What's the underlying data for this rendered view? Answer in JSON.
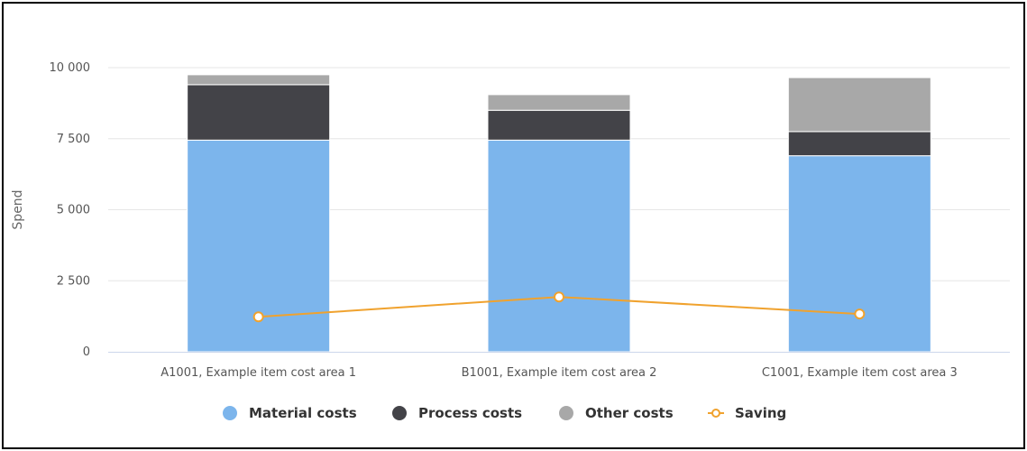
{
  "chart_data": {
    "type": "bar",
    "stacked": true,
    "categories": [
      "A1001, Example item cost area 1",
      "B1001, Example item cost area 2",
      "C1001, Example item cost area 3"
    ],
    "series": [
      {
        "name": "Material costs",
        "kind": "bar",
        "color": "#7cb5ec",
        "values": [
          7450,
          7450,
          6900
        ]
      },
      {
        "name": "Process costs",
        "kind": "bar",
        "color": "#434348",
        "values": [
          1950,
          1050,
          850
        ]
      },
      {
        "name": "Other costs",
        "kind": "bar",
        "color": "#a8a8a8",
        "values": [
          350,
          550,
          1900
        ]
      },
      {
        "name": "Saving",
        "kind": "line",
        "color": "#f0a22e",
        "values": [
          1230,
          1930,
          1330
        ]
      }
    ],
    "title": "",
    "xlabel": "",
    "ylabel": "Spend",
    "ylim": [
      0,
      10000
    ],
    "yticks": [
      0,
      2500,
      5000,
      7500,
      10000
    ],
    "ytick_labels": [
      "0",
      "2 500",
      "5 000",
      "7 500",
      "10 000"
    ],
    "grid": true,
    "legend_position": "bottom-center"
  }
}
